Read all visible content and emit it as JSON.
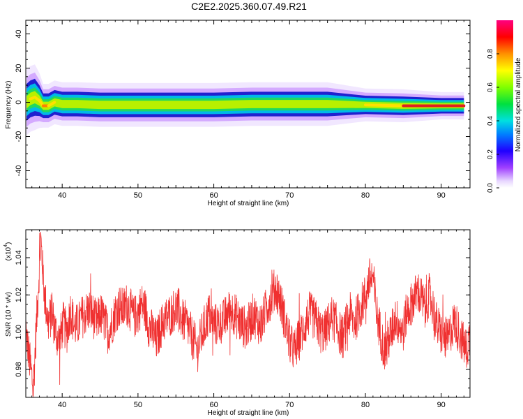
{
  "title": "C2E2.2025.360.07.49.R21",
  "colors": {
    "snr_line": "#f03030",
    "axis": "#000000",
    "ridge_core": "#e02020",
    "ridge_outline": "#2020c0"
  },
  "chart_data": [
    {
      "type": "heatmap",
      "xlabel": "Height of straight line (km)",
      "ylabel": "Frequency (Hz)",
      "xlim": [
        35.2,
        93.8
      ],
      "ylim": [
        -50,
        48
      ],
      "xticks": [
        40,
        50,
        60,
        70,
        80,
        90
      ],
      "yticks": [
        -40,
        -20,
        0,
        20,
        40
      ],
      "colorbar": {
        "label": "Normalized spectral amplitude",
        "range": [
          0,
          1
        ],
        "ticks": [
          "0.0",
          "0.2",
          "0.4",
          "0.6",
          "0.8"
        ],
        "colormap": "rainbow"
      },
      "ridge": {
        "x": [
          35.3,
          35.8,
          36.4,
          37.0,
          37.5,
          38.2,
          39.0,
          40.0,
          42.0,
          45.0,
          50.0,
          55.0,
          60.0,
          65.0,
          70.0,
          75.0,
          80.0,
          85.0,
          90.0,
          93.0
        ],
        "freq": [
          0,
          2,
          3,
          1,
          -2,
          -2,
          0,
          -1,
          -1,
          -1.5,
          -1.5,
          -1.5,
          -1.5,
          -1,
          -1,
          -1,
          -1.5,
          -2,
          -2,
          -2
        ],
        "amplitude": [
          0.6,
          0.7,
          0.75,
          0.7,
          0.85,
          0.9,
          0.6,
          0.5,
          0.45,
          0.45,
          0.45,
          0.45,
          0.5,
          0.5,
          0.55,
          0.6,
          0.7,
          0.85,
          0.95,
          1.0
        ],
        "width_hz": [
          6,
          6,
          6,
          5,
          4,
          4,
          4,
          4,
          4,
          4,
          4,
          4,
          4,
          4,
          4,
          4,
          3,
          3,
          2.5,
          2.5
        ]
      }
    },
    {
      "type": "line",
      "xlabel": "Height of straight line (km)",
      "ylabel": "SNR (10 * v/v)",
      "yscale_label": "(x10",
      "yscale_exponent": "4",
      "xlim": [
        35.2,
        93.8
      ],
      "ylim": [
        0.965,
        1.055
      ],
      "xticks": [
        40,
        50,
        60,
        70,
        80,
        90
      ],
      "yticks": [
        0.98,
        1.0,
        1.02,
        1.04
      ],
      "ytick_labels": [
        "0.98",
        "1.00",
        "1.02",
        "1.04"
      ],
      "series": [
        {
          "x_start": 35.2,
          "x_end": 93.8,
          "points": [
            1.0,
            0.985,
            0.97,
            1.01,
            1.05,
            1.02,
            1.005,
            1.01,
            1.0,
            0.995,
            1.005,
            1.0,
            1.012,
            1.003,
            1.004,
            1.008,
            1.01,
            1.012,
            1.009,
            1.005,
            1.01,
            1.006,
            1.0,
            1.004,
            1.011,
            1.014,
            1.012,
            1.015,
            1.012,
            1.008,
            1.01,
            1.015,
            1.012,
            1.003,
            1.0,
            0.995,
            1.002,
            1.006,
            1.008,
            1.01,
            1.013,
            1.012,
            1.006,
            1.005,
            1.0,
            0.995,
            0.99,
            0.998,
            1.004,
            1.01,
            1.005,
            1.004,
            1.005,
            1.006,
            1.01,
            1.012,
            1.01,
            1.006,
            1.004,
            1.002,
            1.005,
            1.01,
            1.006,
            1.004,
            1.01,
            1.016,
            1.02,
            1.024,
            1.018,
            1.01,
            1.0,
            0.993,
            0.99,
            0.995,
            1.0,
            1.005,
            1.01,
            1.008,
            1.005,
            1.0,
            1.0,
            1.004,
            1.008,
            1.005,
            1.0,
            0.997,
            1.005,
            1.01,
            1.005,
            1.01,
            1.015,
            1.02,
            1.028,
            1.03,
            1.01,
            1.0,
            0.99,
            0.995,
            1.0,
            1.008,
            1.004,
            1.0,
            1.01,
            1.014,
            1.018,
            1.022,
            1.018,
            1.012,
            1.02,
            1.014,
            1.005,
            1.0,
            0.998,
            0.995,
            1.002,
            1.006,
            1.0,
            0.995,
            0.99,
            0.998
          ],
          "noise_amplitude": 0.012
        }
      ]
    }
  ]
}
